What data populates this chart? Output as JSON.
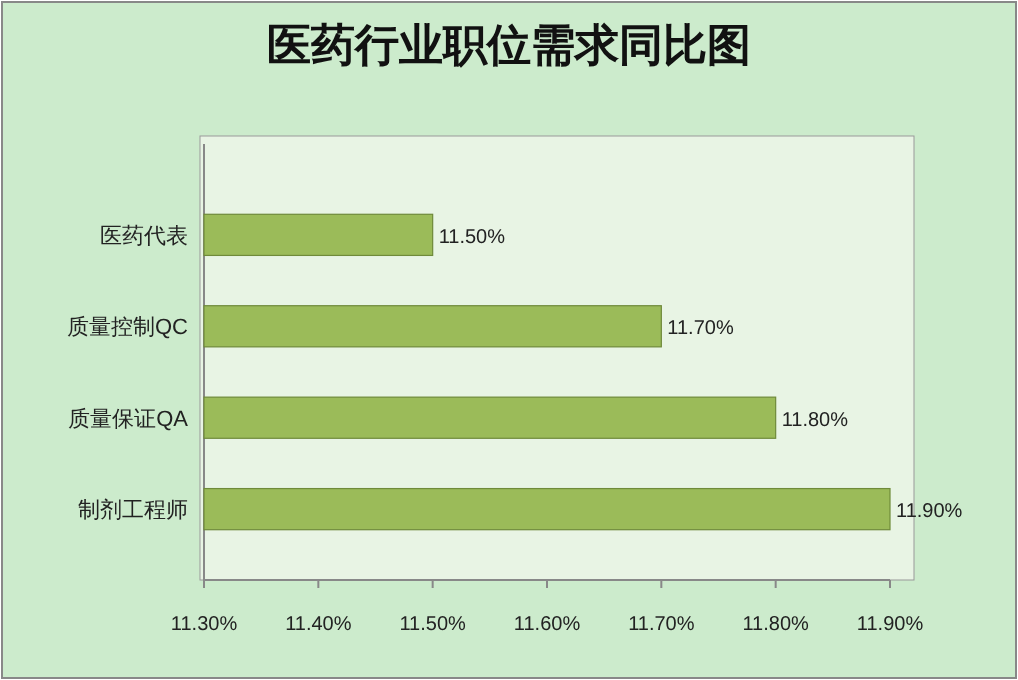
{
  "chart_data": {
    "type": "bar",
    "orientation": "horizontal",
    "title": "医药行业职位需求同比图",
    "categories": [
      "医药代表",
      "质量控制QC",
      "质量保证QA",
      "制剂工程师"
    ],
    "values": [
      11.5,
      11.7,
      11.8,
      11.9
    ],
    "color": "#9bbb59",
    "value_labels": [
      "11.50%",
      "11.70%",
      "11.80%",
      "11.90%"
    ],
    "xlim": [
      11.3,
      11.9
    ],
    "xticks": [
      {
        "value": 11.3,
        "label": "11.30%"
      },
      {
        "value": 11.4,
        "label": "11.40%"
      },
      {
        "value": 11.5,
        "label": "11.50%"
      },
      {
        "value": 11.6,
        "label": "11.60%"
      },
      {
        "value": 11.7,
        "label": "11.70%"
      },
      {
        "value": 11.8,
        "label": "11.80%"
      },
      {
        "value": 11.9,
        "label": "11.90%"
      }
    ],
    "grid": false
  }
}
